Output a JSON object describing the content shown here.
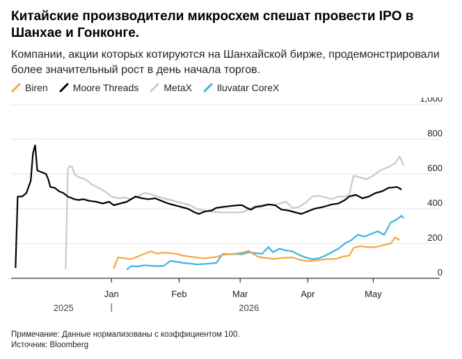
{
  "header": {
    "title": "Китайские производители микросхем спешат провести IPO в Шанхае и Гонконге.",
    "subtitle": "Компании, акции которых котируются на Шанхайской бирже, продемонстрировали более значительный рост в день начала торгов."
  },
  "footer": {
    "note": "Примечание: Данные нормализованы с коэффициентом 100.",
    "source": "Источник: Bloomberg"
  },
  "chart_data": {
    "type": "line",
    "title": "Китайские производители микросхем спешат провести IPO в Шанхае и Гонконге.",
    "subtitle": "Компании, акции которых котируются на Шанхайской бирже, продемонстрировали более значительный рост в день начала торгов.",
    "xlabel": "",
    "ylabel": "",
    "ylim": [
      0,
      1000
    ],
    "y_ticks": [
      0,
      200,
      400,
      600,
      800,
      1000
    ],
    "y_tick_labels": [
      "0",
      "200",
      "400",
      "600",
      "800",
      "1,000"
    ],
    "x_ticks": [
      "2026-01-01",
      "2026-02-01",
      "2026-03-01",
      "2026-04-01",
      "2026-05-01"
    ],
    "x_tick_labels": [
      "Jan",
      "Feb",
      "Mar",
      "Apr",
      "May"
    ],
    "year_labels": [
      {
        "text": "2025",
        "date": "2025-12-10"
      },
      {
        "text": "2026",
        "date": "2026-03-05"
      }
    ],
    "xlim": [
      "2025-11-16",
      "2026-05-20"
    ],
    "grid": "horizontal",
    "legend_position": "top-left",
    "series": [
      {
        "name": "Biren",
        "color": "#f5a742",
        "points": [
          [
            "2026-01-02",
            55
          ],
          [
            "2026-01-04",
            120
          ],
          [
            "2026-01-07",
            115
          ],
          [
            "2026-01-10",
            110
          ],
          [
            "2026-01-13",
            125
          ],
          [
            "2026-01-16",
            140
          ],
          [
            "2026-01-19",
            155
          ],
          [
            "2026-01-22",
            142
          ],
          [
            "2026-01-25",
            148
          ],
          [
            "2026-01-28",
            145
          ],
          [
            "2026-01-31",
            140
          ],
          [
            "2026-02-03",
            130
          ],
          [
            "2026-02-06",
            125
          ],
          [
            "2026-02-09",
            120
          ],
          [
            "2026-02-12",
            115
          ],
          [
            "2026-02-15",
            118
          ],
          [
            "2026-02-18",
            122
          ],
          [
            "2026-02-21",
            135
          ],
          [
            "2026-02-24",
            138
          ],
          [
            "2026-02-27",
            142
          ],
          [
            "2026-03-02",
            148
          ],
          [
            "2026-03-05",
            158
          ],
          [
            "2026-03-07",
            140
          ],
          [
            "2026-03-09",
            125
          ],
          [
            "2026-03-12",
            118
          ],
          [
            "2026-03-16",
            112
          ],
          [
            "2026-03-19",
            115
          ],
          [
            "2026-03-22",
            118
          ],
          [
            "2026-03-25",
            120
          ],
          [
            "2026-03-28",
            108
          ],
          [
            "2026-03-31",
            100
          ],
          [
            "2026-04-03",
            100
          ],
          [
            "2026-04-06",
            105
          ],
          [
            "2026-04-10",
            110
          ],
          [
            "2026-04-14",
            112
          ],
          [
            "2026-04-17",
            125
          ],
          [
            "2026-04-20",
            130
          ],
          [
            "2026-04-22",
            175
          ],
          [
            "2026-04-25",
            185
          ],
          [
            "2026-04-28",
            180
          ],
          [
            "2026-05-01",
            178
          ],
          [
            "2026-05-04",
            185
          ],
          [
            "2026-05-07",
            195
          ],
          [
            "2026-05-09",
            200
          ],
          [
            "2026-05-11",
            235
          ],
          [
            "2026-05-13",
            220
          ]
        ]
      },
      {
        "name": "Moore Threads",
        "color": "#000000",
        "points": [
          [
            "2025-11-18",
            60
          ],
          [
            "2025-11-19",
            470
          ],
          [
            "2025-11-21",
            470
          ],
          [
            "2025-11-23",
            490
          ],
          [
            "2025-11-25",
            560
          ],
          [
            "2025-11-26",
            720
          ],
          [
            "2025-11-27",
            765
          ],
          [
            "2025-11-28",
            620
          ],
          [
            "2025-12-02",
            600
          ],
          [
            "2025-12-03",
            570
          ],
          [
            "2025-12-04",
            525
          ],
          [
            "2025-12-06",
            520
          ],
          [
            "2025-12-08",
            500
          ],
          [
            "2025-12-10",
            490
          ],
          [
            "2025-12-12",
            470
          ],
          [
            "2025-12-15",
            455
          ],
          [
            "2025-12-17",
            450
          ],
          [
            "2025-12-19",
            455
          ],
          [
            "2025-12-22",
            445
          ],
          [
            "2025-12-25",
            440
          ],
          [
            "2025-12-28",
            430
          ],
          [
            "2025-12-31",
            440
          ],
          [
            "2026-01-02",
            420
          ],
          [
            "2026-01-05",
            430
          ],
          [
            "2026-01-08",
            440
          ],
          [
            "2026-01-12",
            470
          ],
          [
            "2026-01-15",
            460
          ],
          [
            "2026-01-18",
            455
          ],
          [
            "2026-01-21",
            460
          ],
          [
            "2026-01-24",
            445
          ],
          [
            "2026-01-27",
            430
          ],
          [
            "2026-01-30",
            420
          ],
          [
            "2026-02-02",
            410
          ],
          [
            "2026-02-05",
            400
          ],
          [
            "2026-02-08",
            380
          ],
          [
            "2026-02-10",
            370
          ],
          [
            "2026-02-13",
            385
          ],
          [
            "2026-02-16",
            390
          ],
          [
            "2026-02-18",
            405
          ],
          [
            "2026-02-21",
            410
          ],
          [
            "2026-02-24",
            415
          ],
          [
            "2026-02-28",
            420
          ],
          [
            "2026-03-02",
            420
          ],
          [
            "2026-03-04",
            405
          ],
          [
            "2026-03-06",
            395
          ],
          [
            "2026-03-08",
            410
          ],
          [
            "2026-03-11",
            415
          ],
          [
            "2026-03-14",
            425
          ],
          [
            "2026-03-17",
            420
          ],
          [
            "2026-03-20",
            395
          ],
          [
            "2026-03-23",
            390
          ],
          [
            "2026-03-26",
            380
          ],
          [
            "2026-03-29",
            370
          ],
          [
            "2026-04-01",
            385
          ],
          [
            "2026-04-04",
            400
          ],
          [
            "2026-04-08",
            410
          ],
          [
            "2026-04-12",
            425
          ],
          [
            "2026-04-15",
            430
          ],
          [
            "2026-04-18",
            450
          ],
          [
            "2026-04-20",
            470
          ],
          [
            "2026-04-23",
            480
          ],
          [
            "2026-04-26",
            460
          ],
          [
            "2026-04-29",
            470
          ],
          [
            "2026-05-02",
            490
          ],
          [
            "2026-05-05",
            500
          ],
          [
            "2026-05-08",
            520
          ],
          [
            "2026-05-12",
            525
          ],
          [
            "2026-05-14",
            510
          ]
        ]
      },
      {
        "name": "MetaX",
        "color": "#c9c9c9",
        "points": [
          [
            "2025-12-11",
            55
          ],
          [
            "2025-12-12",
            630
          ],
          [
            "2025-12-13",
            645
          ],
          [
            "2025-12-14",
            640
          ],
          [
            "2025-12-15",
            600
          ],
          [
            "2025-12-17",
            580
          ],
          [
            "2025-12-19",
            575
          ],
          [
            "2025-12-21",
            560
          ],
          [
            "2025-12-23",
            540
          ],
          [
            "2025-12-26",
            520
          ],
          [
            "2025-12-29",
            500
          ],
          [
            "2026-01-01",
            470
          ],
          [
            "2026-01-04",
            460
          ],
          [
            "2026-01-07",
            465
          ],
          [
            "2026-01-10",
            455
          ],
          [
            "2026-01-13",
            470
          ],
          [
            "2026-01-16",
            490
          ],
          [
            "2026-01-19",
            485
          ],
          [
            "2026-01-22",
            470
          ],
          [
            "2026-01-25",
            460
          ],
          [
            "2026-01-28",
            450
          ],
          [
            "2026-01-31",
            440
          ],
          [
            "2026-02-03",
            430
          ],
          [
            "2026-02-06",
            420
          ],
          [
            "2026-02-09",
            400
          ],
          [
            "2026-02-12",
            390
          ],
          [
            "2026-02-15",
            385
          ],
          [
            "2026-02-18",
            380
          ],
          [
            "2026-02-21",
            378
          ],
          [
            "2026-02-24",
            380
          ],
          [
            "2026-02-27",
            378
          ],
          [
            "2026-03-02",
            380
          ],
          [
            "2026-03-05",
            395
          ],
          [
            "2026-03-07",
            410
          ],
          [
            "2026-03-10",
            420
          ],
          [
            "2026-03-13",
            425
          ],
          [
            "2026-03-16",
            420
          ],
          [
            "2026-03-19",
            430
          ],
          [
            "2026-03-22",
            440
          ],
          [
            "2026-03-25",
            405
          ],
          [
            "2026-03-28",
            410
          ],
          [
            "2026-03-31",
            435
          ],
          [
            "2026-04-03",
            470
          ],
          [
            "2026-04-06",
            475
          ],
          [
            "2026-04-09",
            465
          ],
          [
            "2026-04-12",
            455
          ],
          [
            "2026-04-15",
            470
          ],
          [
            "2026-04-18",
            470
          ],
          [
            "2026-04-20",
            480
          ],
          [
            "2026-04-22",
            590
          ],
          [
            "2026-04-25",
            580
          ],
          [
            "2026-04-28",
            570
          ],
          [
            "2026-05-01",
            590
          ],
          [
            "2026-05-04",
            620
          ],
          [
            "2026-05-08",
            640
          ],
          [
            "2026-05-11",
            660
          ],
          [
            "2026-05-13",
            700
          ],
          [
            "2026-05-15",
            650
          ]
        ]
      },
      {
        "name": "Iluvatar CoreX",
        "color": "#3cb4e2",
        "points": [
          [
            "2026-01-08",
            50
          ],
          [
            "2026-01-10",
            70
          ],
          [
            "2026-01-13",
            68
          ],
          [
            "2026-01-16",
            75
          ],
          [
            "2026-01-19",
            72
          ],
          [
            "2026-01-22",
            70
          ],
          [
            "2026-01-25",
            72
          ],
          [
            "2026-01-28",
            100
          ],
          [
            "2026-01-31",
            95
          ],
          [
            "2026-02-03",
            88
          ],
          [
            "2026-02-06",
            85
          ],
          [
            "2026-02-09",
            80
          ],
          [
            "2026-02-12",
            82
          ],
          [
            "2026-02-15",
            85
          ],
          [
            "2026-02-18",
            88
          ],
          [
            "2026-02-21",
            140
          ],
          [
            "2026-02-24",
            138
          ],
          [
            "2026-02-27",
            140
          ],
          [
            "2026-03-02",
            138
          ],
          [
            "2026-03-05",
            150
          ],
          [
            "2026-03-08",
            145
          ],
          [
            "2026-03-11",
            140
          ],
          [
            "2026-03-14",
            180
          ],
          [
            "2026-03-16",
            150
          ],
          [
            "2026-03-19",
            170
          ],
          [
            "2026-03-22",
            160
          ],
          [
            "2026-03-25",
            155
          ],
          [
            "2026-03-28",
            135
          ],
          [
            "2026-03-31",
            120
          ],
          [
            "2026-04-03",
            110
          ],
          [
            "2026-04-06",
            115
          ],
          [
            "2026-04-09",
            130
          ],
          [
            "2026-04-12",
            150
          ],
          [
            "2026-04-15",
            170
          ],
          [
            "2026-04-18",
            200
          ],
          [
            "2026-04-21",
            220
          ],
          [
            "2026-04-24",
            250
          ],
          [
            "2026-04-27",
            240
          ],
          [
            "2026-04-30",
            255
          ],
          [
            "2026-05-03",
            270
          ],
          [
            "2026-05-06",
            250
          ],
          [
            "2026-05-09",
            320
          ],
          [
            "2026-05-12",
            340
          ],
          [
            "2026-05-14",
            360
          ],
          [
            "2026-05-15",
            345
          ]
        ]
      }
    ]
  }
}
